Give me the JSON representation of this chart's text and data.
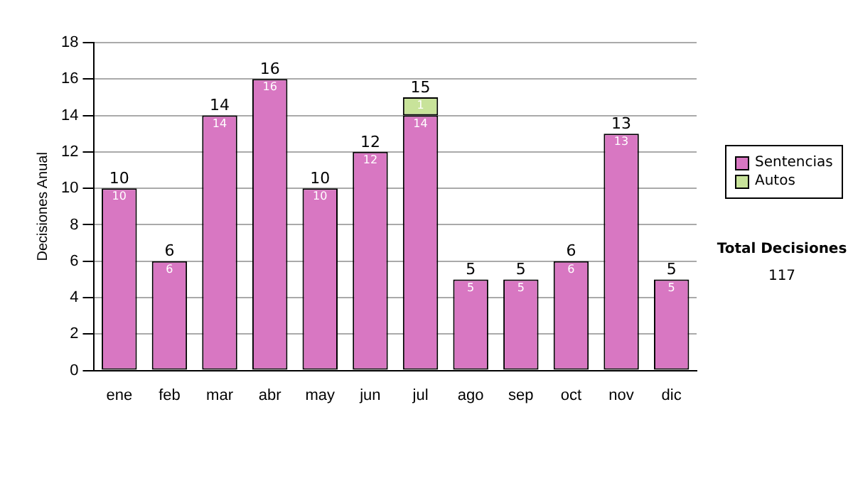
{
  "chart_data": {
    "type": "bar",
    "stacked": true,
    "ylabel": "Decisiones Anual",
    "categories": [
      "ene",
      "feb",
      "mar",
      "abr",
      "may",
      "jun",
      "jul",
      "ago",
      "sep",
      "oct",
      "nov",
      "dic"
    ],
    "series": [
      {
        "name": "Sentencias",
        "color": "#d877c2",
        "values": [
          10,
          6,
          14,
          16,
          10,
          12,
          14,
          5,
          5,
          6,
          13,
          5
        ]
      },
      {
        "name": "Autos",
        "color": "#c8e39a",
        "values": [
          null,
          null,
          null,
          null,
          null,
          null,
          1,
          null,
          null,
          null,
          null,
          null
        ]
      }
    ],
    "totals": [
      "10",
      "6",
      "14",
      "16",
      "10",
      "12",
      "15",
      "5",
      "5",
      "6",
      "13",
      "5"
    ],
    "data_labels": true,
    "ylim": [
      0,
      18
    ],
    "yticks": [
      0,
      2,
      4,
      6,
      8,
      10,
      12,
      14,
      16,
      18
    ],
    "grid": "y",
    "legend": "right",
    "annotations": [
      "Total Decisiones",
      "117"
    ]
  }
}
